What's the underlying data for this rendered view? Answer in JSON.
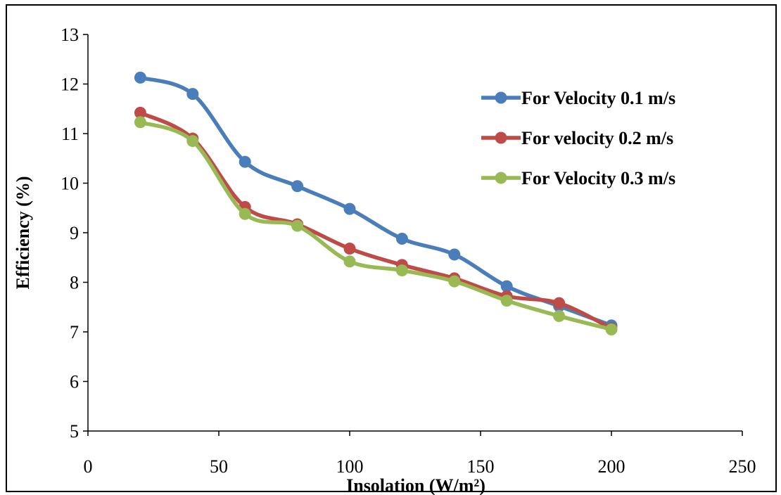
{
  "chart_data": {
    "type": "line",
    "title": "",
    "xlabel": "Insolation (W/m²)",
    "ylabel": "Efficiency (%)",
    "xlim": [
      0,
      250
    ],
    "ylim": [
      5,
      13
    ],
    "xticks": [
      0,
      50,
      100,
      150,
      200,
      250
    ],
    "yticks": [
      5,
      6,
      7,
      8,
      9,
      10,
      11,
      12,
      13
    ],
    "smooth": true,
    "grid": false,
    "legend_position": "top-right",
    "x": [
      20,
      40,
      60,
      80,
      100,
      120,
      140,
      160,
      180,
      200
    ],
    "series": [
      {
        "name": "For Velocity 0.1 m/s",
        "color": "#4a7ebb",
        "values": [
          12.13,
          11.8,
          10.43,
          9.94,
          9.48,
          8.88,
          8.56,
          7.92,
          7.52,
          7.13
        ]
      },
      {
        "name": "For velocity 0.2 m/s",
        "color": "#be4b48",
        "values": [
          11.42,
          10.9,
          9.52,
          9.17,
          8.68,
          8.35,
          8.08,
          7.72,
          7.58,
          7.07
        ]
      },
      {
        "name": "For Velocity 0.3 m/s",
        "color": "#98b954",
        "values": [
          11.23,
          10.85,
          9.38,
          9.14,
          8.42,
          8.24,
          8.02,
          7.63,
          7.32,
          7.05
        ]
      }
    ]
  }
}
